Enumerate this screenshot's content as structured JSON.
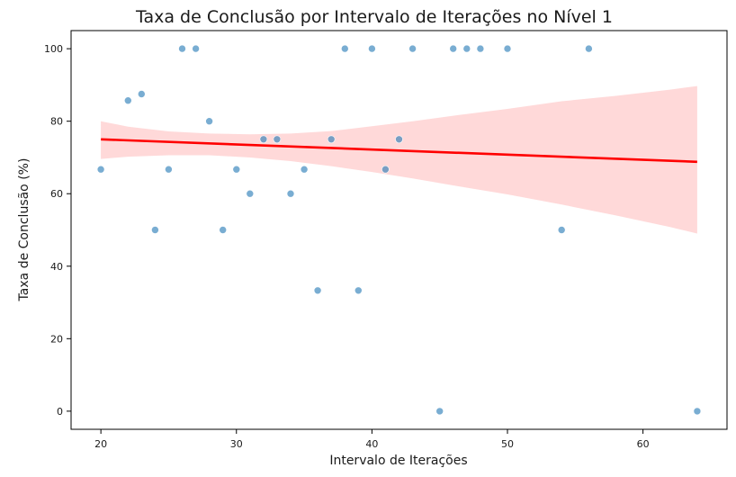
{
  "chart_data": {
    "type": "scatter",
    "title": "Taxa de Conclusão por Intervalo de Iterações no Nível 1",
    "xlabel": "Intervalo de Iterações",
    "ylabel": "Taxa de Conclusão (%)",
    "xlim": [
      17.8,
      66.2
    ],
    "ylim": [
      -5,
      105
    ],
    "xticks": [
      "20",
      "30",
      "40",
      "50",
      "60"
    ],
    "yticks": [
      "0",
      "20",
      "40",
      "60",
      "80",
      "100"
    ],
    "grid": false,
    "legend": "none",
    "colors": {
      "points": "#1f77b4",
      "regression_line": "#ff0000",
      "confidence_band": "#ffb3b3"
    },
    "points": [
      {
        "x": 20,
        "y": 66.7
      },
      {
        "x": 22,
        "y": 85.7
      },
      {
        "x": 23,
        "y": 87.5
      },
      {
        "x": 24,
        "y": 50
      },
      {
        "x": 25,
        "y": 66.7
      },
      {
        "x": 26,
        "y": 100
      },
      {
        "x": 27,
        "y": 100
      },
      {
        "x": 28,
        "y": 80
      },
      {
        "x": 29,
        "y": 50
      },
      {
        "x": 30,
        "y": 66.7
      },
      {
        "x": 31,
        "y": 60
      },
      {
        "x": 32,
        "y": 75
      },
      {
        "x": 33,
        "y": 75
      },
      {
        "x": 34,
        "y": 60
      },
      {
        "x": 35,
        "y": 66.7
      },
      {
        "x": 36,
        "y": 33.3
      },
      {
        "x": 37,
        "y": 75
      },
      {
        "x": 38,
        "y": 100
      },
      {
        "x": 39,
        "y": 33.3
      },
      {
        "x": 40,
        "y": 100
      },
      {
        "x": 41,
        "y": 66.7
      },
      {
        "x": 42,
        "y": 75
      },
      {
        "x": 43,
        "y": 100
      },
      {
        "x": 45,
        "y": 0
      },
      {
        "x": 46,
        "y": 100
      },
      {
        "x": 47,
        "y": 100
      },
      {
        "x": 48,
        "y": 100
      },
      {
        "x": 50,
        "y": 100
      },
      {
        "x": 54,
        "y": 50
      },
      {
        "x": 56,
        "y": 100
      },
      {
        "x": 64,
        "y": 0
      }
    ],
    "regression": {
      "line": [
        {
          "x": 20,
          "y": 75.0
        },
        {
          "x": 64,
          "y": 68.8
        }
      ],
      "confidence_band": {
        "x": [
          20,
          22,
          25,
          28,
          31,
          34,
          37,
          40,
          43,
          46,
          50,
          54,
          58,
          62,
          64
        ],
        "upper": [
          80.0,
          78.5,
          77.2,
          76.6,
          76.4,
          76.6,
          77.3,
          78.6,
          80.0,
          81.5,
          83.4,
          85.5,
          87.0,
          88.7,
          89.7
        ],
        "lower": [
          69.6,
          70.2,
          70.6,
          70.6,
          70.0,
          69.0,
          67.6,
          66.0,
          64.2,
          62.3,
          59.8,
          57.0,
          54.0,
          50.8,
          49.0
        ]
      }
    }
  }
}
